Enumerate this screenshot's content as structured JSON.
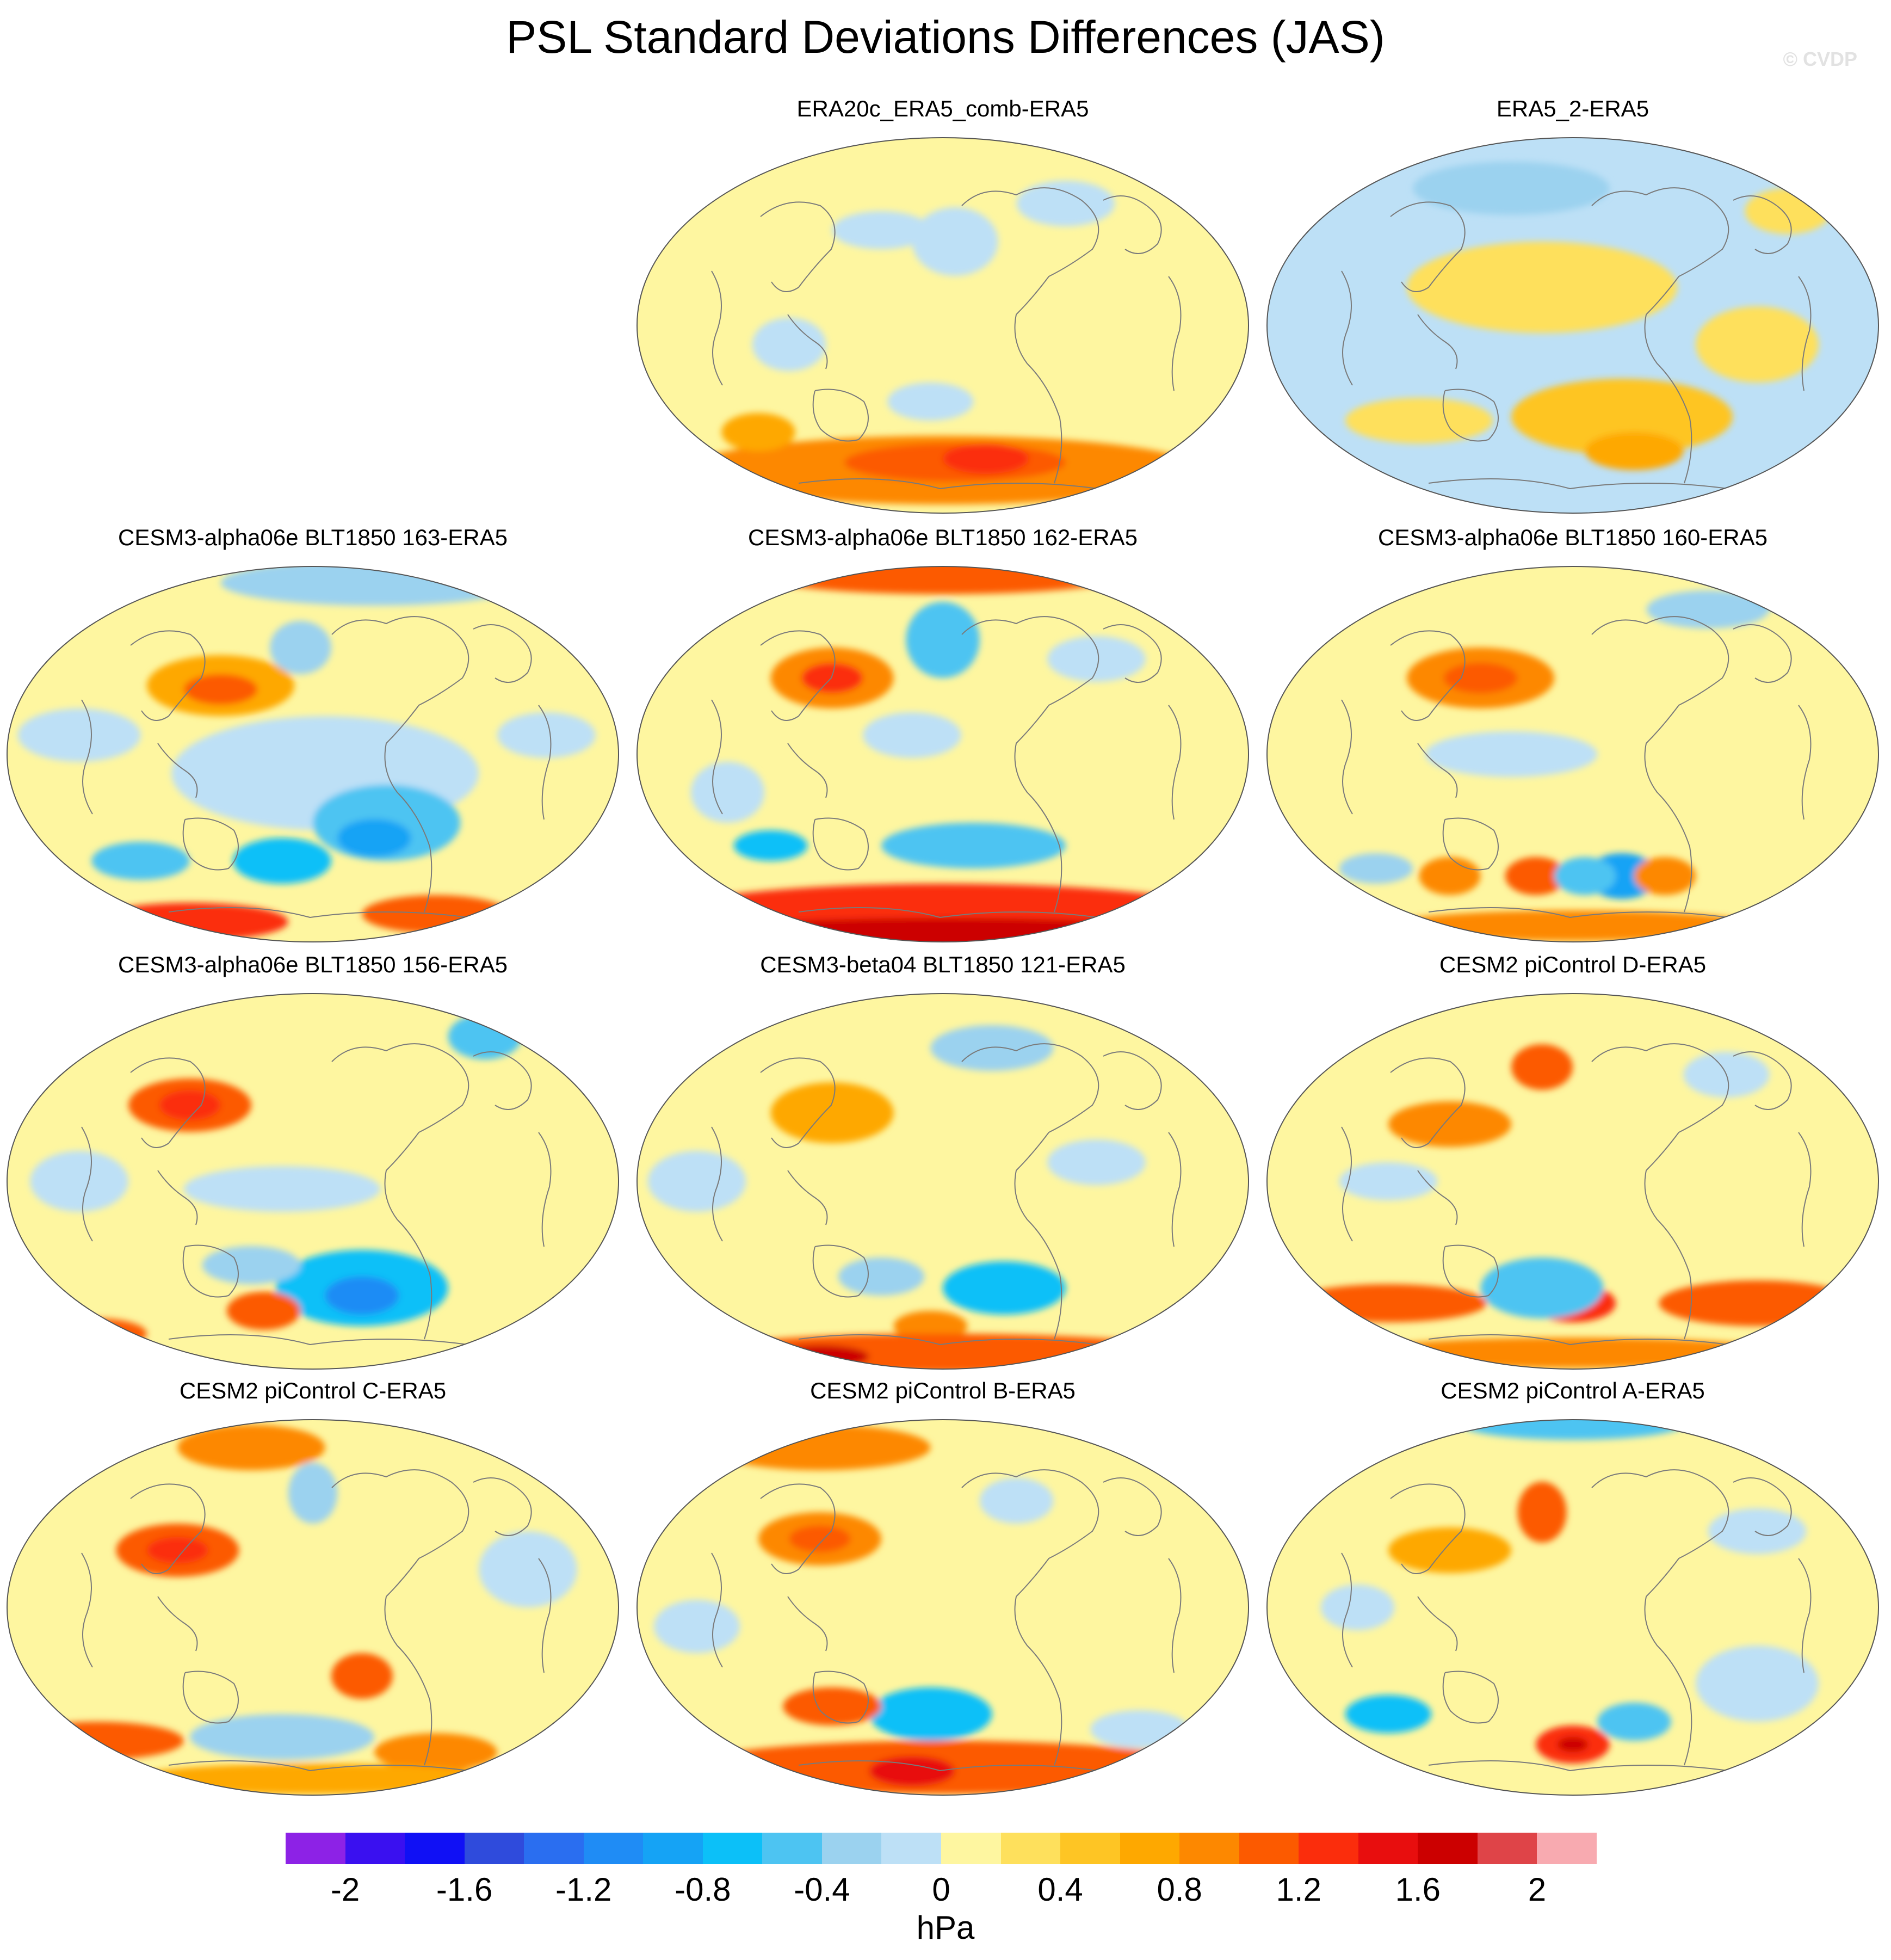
{
  "title": "PSL Standard Deviations Differences (JAS)",
  "watermark": "© CVDP",
  "colors": {
    "zero_pos": "#fef6a0",
    "zero_neg": "#bde0f6",
    "coast": "#7a7a7a"
  },
  "panels": [
    {
      "label": "ERA20c_ERA5_comb-ERA5",
      "row": 0,
      "col": 1,
      "bg": 1,
      "blobs": [
        [
          0.5,
          0.88,
          0.42,
          0.09,
          4
        ],
        [
          0.52,
          0.86,
          0.18,
          0.05,
          5
        ],
        [
          0.57,
          0.85,
          0.07,
          0.04,
          6
        ],
        [
          0.4,
          0.25,
          0.08,
          0.05,
          -1
        ],
        [
          0.52,
          0.28,
          0.07,
          0.09,
          -1
        ],
        [
          0.25,
          0.55,
          0.06,
          0.07,
          -1
        ],
        [
          0.7,
          0.18,
          0.08,
          0.06,
          -1
        ],
        [
          0.48,
          0.7,
          0.07,
          0.05,
          -1
        ],
        [
          0.2,
          0.78,
          0.06,
          0.05,
          3
        ]
      ]
    },
    {
      "label": "ERA5_2-ERA5",
      "row": 0,
      "col": 2,
      "bg": -1,
      "blobs": [
        [
          0.45,
          0.4,
          0.22,
          0.12,
          1
        ],
        [
          0.58,
          0.74,
          0.18,
          0.1,
          2
        ],
        [
          0.6,
          0.83,
          0.08,
          0.05,
          3
        ],
        [
          0.25,
          0.75,
          0.12,
          0.06,
          1
        ],
        [
          0.8,
          0.55,
          0.1,
          0.1,
          1
        ],
        [
          0.4,
          0.14,
          0.16,
          0.07,
          -2
        ],
        [
          0.85,
          0.2,
          0.07,
          0.06,
          1
        ]
      ]
    },
    {
      "label": "CESM3-alpha06e BLT1850 163-ERA5",
      "row": 1,
      "col": 0,
      "bg": 1,
      "blobs": [
        [
          0.52,
          0.55,
          0.25,
          0.15,
          -1
        ],
        [
          0.62,
          0.68,
          0.12,
          0.1,
          -3
        ],
        [
          0.6,
          0.72,
          0.06,
          0.05,
          -5
        ],
        [
          0.45,
          0.78,
          0.08,
          0.06,
          -4
        ],
        [
          0.22,
          0.78,
          0.08,
          0.05,
          -3
        ],
        [
          0.35,
          0.32,
          0.12,
          0.08,
          3
        ],
        [
          0.35,
          0.33,
          0.06,
          0.04,
          5
        ],
        [
          0.3,
          0.94,
          0.16,
          0.05,
          6
        ],
        [
          0.7,
          0.92,
          0.12,
          0.05,
          5
        ],
        [
          0.6,
          0.05,
          0.25,
          0.06,
          -2
        ],
        [
          0.48,
          0.22,
          0.05,
          0.07,
          -2
        ],
        [
          0.12,
          0.45,
          0.1,
          0.07,
          -1
        ],
        [
          0.88,
          0.45,
          0.08,
          0.06,
          -1
        ]
      ]
    },
    {
      "label": "CESM3-alpha06e BLT1850 162-ERA5",
      "row": 1,
      "col": 1,
      "bg": 1,
      "blobs": [
        [
          0.5,
          0.03,
          0.3,
          0.05,
          5
        ],
        [
          0.32,
          0.3,
          0.1,
          0.08,
          4
        ],
        [
          0.32,
          0.3,
          0.05,
          0.04,
          6
        ],
        [
          0.5,
          0.2,
          0.06,
          0.1,
          -3
        ],
        [
          0.55,
          0.74,
          0.15,
          0.06,
          -3
        ],
        [
          0.22,
          0.74,
          0.06,
          0.04,
          -4
        ],
        [
          0.5,
          0.92,
          0.45,
          0.08,
          6
        ],
        [
          0.5,
          0.97,
          0.4,
          0.04,
          8
        ],
        [
          0.15,
          0.6,
          0.06,
          0.08,
          -1
        ],
        [
          0.45,
          0.45,
          0.08,
          0.06,
          -1
        ],
        [
          0.75,
          0.25,
          0.08,
          0.06,
          -1
        ]
      ]
    },
    {
      "label": "CESM3-alpha06e BLT1850 160-ERA5",
      "row": 1,
      "col": 2,
      "bg": 1,
      "blobs": [
        [
          0.35,
          0.3,
          0.12,
          0.08,
          4
        ],
        [
          0.35,
          0.3,
          0.06,
          0.04,
          5
        ],
        [
          0.58,
          0.82,
          0.06,
          0.06,
          -5
        ],
        [
          0.44,
          0.82,
          0.05,
          0.05,
          5
        ],
        [
          0.52,
          0.82,
          0.05,
          0.05,
          -3
        ],
        [
          0.65,
          0.82,
          0.05,
          0.05,
          4
        ],
        [
          0.3,
          0.82,
          0.05,
          0.05,
          4
        ],
        [
          0.18,
          0.8,
          0.06,
          0.04,
          -2
        ],
        [
          0.4,
          0.5,
          0.14,
          0.06,
          -1
        ],
        [
          0.72,
          0.12,
          0.1,
          0.05,
          -2
        ],
        [
          0.85,
          0.08,
          0.06,
          0.04,
          -3
        ],
        [
          0.5,
          0.95,
          0.3,
          0.04,
          4
        ]
      ]
    },
    {
      "label": "CESM3-alpha06e BLT1850 156-ERA5",
      "row": 2,
      "col": 0,
      "bg": 1,
      "blobs": [
        [
          0.3,
          0.3,
          0.1,
          0.07,
          5
        ],
        [
          0.3,
          0.3,
          0.05,
          0.04,
          6
        ],
        [
          0.58,
          0.78,
          0.14,
          0.1,
          -4
        ],
        [
          0.58,
          0.8,
          0.06,
          0.05,
          -6
        ],
        [
          0.4,
          0.72,
          0.08,
          0.05,
          -2
        ],
        [
          0.45,
          0.52,
          0.16,
          0.06,
          -1
        ],
        [
          0.42,
          0.84,
          0.06,
          0.05,
          5
        ],
        [
          0.15,
          0.9,
          0.08,
          0.04,
          5
        ],
        [
          0.78,
          0.12,
          0.06,
          0.06,
          -3
        ],
        [
          0.12,
          0.5,
          0.08,
          0.08,
          -1
        ]
      ]
    },
    {
      "label": "CESM3-beta04 BLT1850 121-ERA5",
      "row": 2,
      "col": 1,
      "bg": 1,
      "blobs": [
        [
          0.32,
          0.32,
          0.1,
          0.08,
          3
        ],
        [
          0.6,
          0.78,
          0.1,
          0.07,
          -4
        ],
        [
          0.58,
          0.15,
          0.1,
          0.06,
          -2
        ],
        [
          0.4,
          0.75,
          0.07,
          0.05,
          -2
        ],
        [
          0.48,
          0.88,
          0.06,
          0.04,
          4
        ],
        [
          0.5,
          0.95,
          0.4,
          0.05,
          5
        ],
        [
          0.3,
          0.96,
          0.08,
          0.03,
          8
        ],
        [
          0.1,
          0.5,
          0.08,
          0.08,
          -1
        ],
        [
          0.75,
          0.45,
          0.08,
          0.06,
          -1
        ]
      ]
    },
    {
      "label": "CESM2 piControl D-ERA5",
      "row": 2,
      "col": 2,
      "bg": 1,
      "blobs": [
        [
          0.45,
          0.2,
          0.05,
          0.06,
          5
        ],
        [
          0.3,
          0.35,
          0.1,
          0.06,
          4
        ],
        [
          0.5,
          0.82,
          0.07,
          0.05,
          6
        ],
        [
          0.5,
          0.82,
          0.03,
          0.025,
          8
        ],
        [
          0.45,
          0.78,
          0.1,
          0.08,
          -3
        ],
        [
          0.2,
          0.82,
          0.16,
          0.05,
          5
        ],
        [
          0.8,
          0.82,
          0.16,
          0.06,
          5
        ],
        [
          0.5,
          0.95,
          0.35,
          0.04,
          4
        ],
        [
          0.75,
          0.22,
          0.07,
          0.06,
          -1
        ],
        [
          0.2,
          0.5,
          0.08,
          0.05,
          -1
        ]
      ]
    },
    {
      "label": "CESM2 piControl C-ERA5",
      "row": 3,
      "col": 0,
      "bg": 1,
      "blobs": [
        [
          0.28,
          0.35,
          0.1,
          0.07,
          5
        ],
        [
          0.28,
          0.35,
          0.05,
          0.035,
          6
        ],
        [
          0.4,
          0.08,
          0.12,
          0.06,
          4
        ],
        [
          0.5,
          0.2,
          0.04,
          0.08,
          -2
        ],
        [
          0.58,
          0.68,
          0.05,
          0.06,
          5
        ],
        [
          0.15,
          0.85,
          0.14,
          0.05,
          5
        ],
        [
          0.45,
          0.84,
          0.15,
          0.06,
          -2
        ],
        [
          0.7,
          0.88,
          0.1,
          0.05,
          4
        ],
        [
          0.5,
          0.95,
          0.3,
          0.04,
          3
        ],
        [
          0.85,
          0.4,
          0.08,
          0.1,
          -1
        ]
      ]
    },
    {
      "label": "CESM2 piControl B-ERA5",
      "row": 3,
      "col": 1,
      "bg": 1,
      "blobs": [
        [
          0.3,
          0.08,
          0.18,
          0.06,
          4
        ],
        [
          0.3,
          0.32,
          0.1,
          0.07,
          4
        ],
        [
          0.3,
          0.32,
          0.05,
          0.035,
          5
        ],
        [
          0.48,
          0.78,
          0.1,
          0.07,
          -4
        ],
        [
          0.32,
          0.76,
          0.08,
          0.05,
          5
        ],
        [
          0.5,
          0.92,
          0.42,
          0.07,
          5
        ],
        [
          0.45,
          0.93,
          0.07,
          0.04,
          7
        ],
        [
          0.82,
          0.82,
          0.08,
          0.05,
          -1
        ],
        [
          0.1,
          0.55,
          0.07,
          0.07,
          -1
        ],
        [
          0.62,
          0.22,
          0.06,
          0.06,
          -1
        ]
      ]
    },
    {
      "label": "CESM2 piControl A-ERA5",
      "row": 3,
      "col": 2,
      "bg": 1,
      "blobs": [
        [
          0.5,
          0.02,
          0.18,
          0.04,
          -3
        ],
        [
          0.45,
          0.25,
          0.04,
          0.08,
          5
        ],
        [
          0.3,
          0.35,
          0.1,
          0.06,
          3
        ],
        [
          0.5,
          0.86,
          0.06,
          0.05,
          6
        ],
        [
          0.5,
          0.86,
          0.025,
          0.02,
          8
        ],
        [
          0.2,
          0.78,
          0.07,
          0.05,
          -4
        ],
        [
          0.6,
          0.8,
          0.06,
          0.05,
          -3
        ],
        [
          0.8,
          0.7,
          0.1,
          0.1,
          -1
        ],
        [
          0.15,
          0.5,
          0.06,
          0.06,
          -1
        ],
        [
          0.8,
          0.3,
          0.08,
          0.06,
          -1
        ]
      ]
    }
  ],
  "colorbar": {
    "colors": [
      "#8d22e6",
      "#3a10f0",
      "#1010f5",
      "#2f4bdc",
      "#2a6ef0",
      "#1f8cf5",
      "#15a3f5",
      "#0cc0f8",
      "#4dc4f2",
      "#9bd2ef",
      "#bde0f6",
      "#fef6a0",
      "#fee05c",
      "#fec524",
      "#fea800",
      "#fd8800",
      "#fc5a00",
      "#fb2d0c",
      "#e80e0e",
      "#cc0000",
      "#df4448",
      "#f8aab0"
    ],
    "ticks": [
      "-2",
      "-1.6",
      "-1.2",
      "-0.8",
      "-0.4",
      "0",
      "0.4",
      "0.8",
      "1.2",
      "1.6",
      "2"
    ],
    "unit": "hPa"
  }
}
